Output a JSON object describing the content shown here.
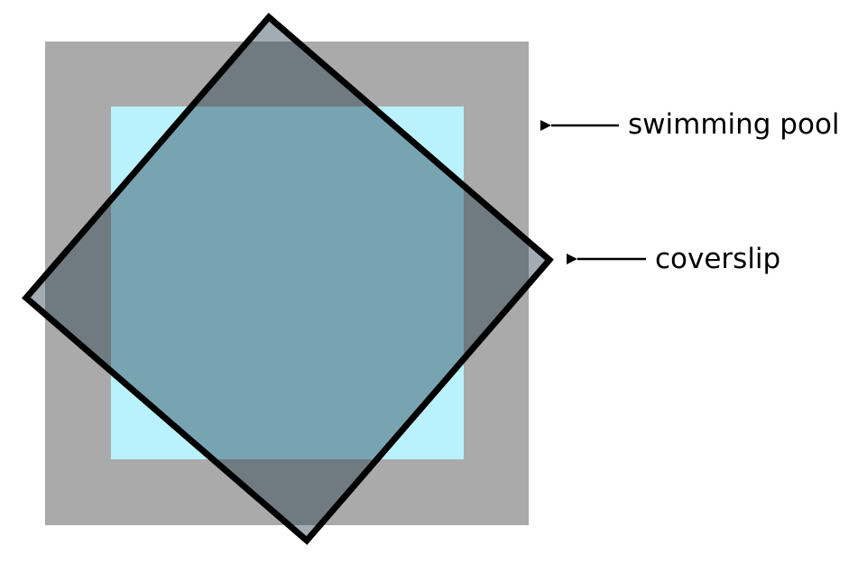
{
  "labels": {
    "pool": "swimming pool",
    "coverslip": "coverslip"
  },
  "colors": {
    "background": "#ffffff",
    "pool_frame": "#aaaaaa",
    "pool_water": "#b9f1fd",
    "coverslip_tint": "#1e3a4a",
    "outline": "#000000"
  }
}
